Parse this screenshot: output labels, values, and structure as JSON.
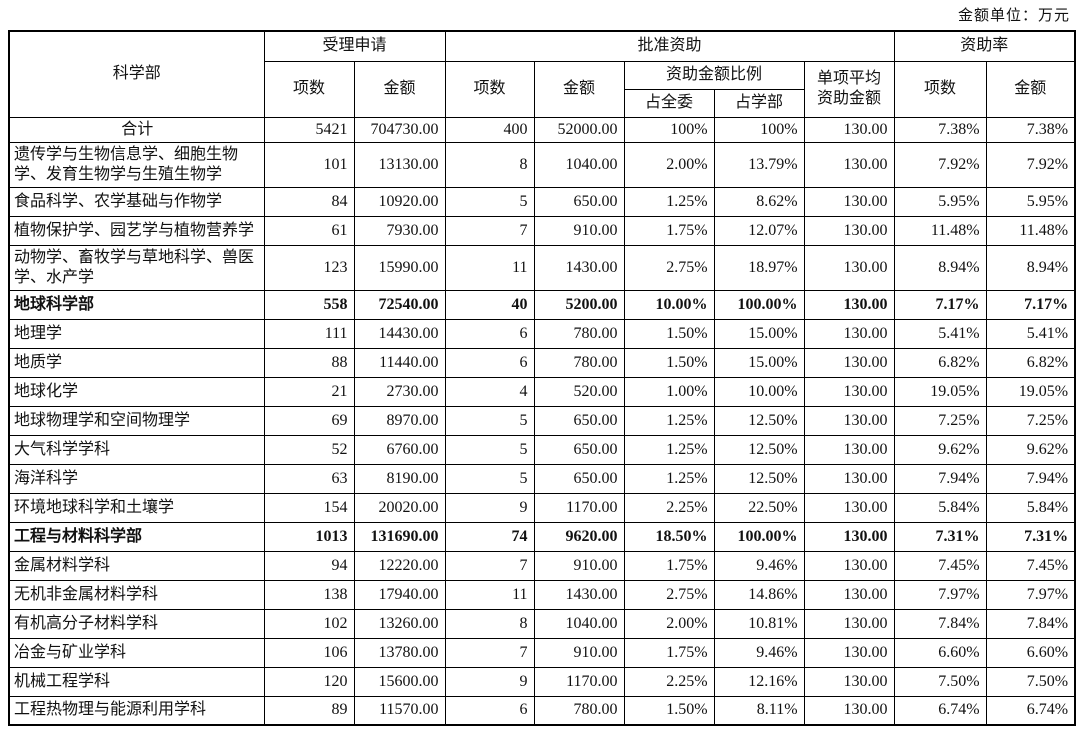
{
  "meta": {
    "unit_label": "金额单位：万元"
  },
  "table": {
    "headers": {
      "dept": "科学部",
      "group_accepted": "受理申请",
      "group_approved": "批准资助",
      "group_rate": "资助率",
      "count": "项数",
      "amount": "金额",
      "ratio_group": "资助金额比例",
      "ratio_committee": "占全委",
      "ratio_dept": "占学部",
      "avg_single": "单项平均 资助金额"
    },
    "rows": [
      {
        "name": "合计",
        "type": "total",
        "values": [
          "5421",
          "704730.00",
          "400",
          "52000.00",
          "100%",
          "100%",
          "130.00",
          "7.38%",
          "7.38%"
        ]
      },
      {
        "name": "遗传学与生物信息学、细胞生物学、发育生物学与生殖生物学",
        "type": "item",
        "values": [
          "101",
          "13130.00",
          "8",
          "1040.00",
          "2.00%",
          "13.79%",
          "130.00",
          "7.92%",
          "7.92%"
        ]
      },
      {
        "name": "食品科学、农学基础与作物学",
        "type": "item",
        "values": [
          "84",
          "10920.00",
          "5",
          "650.00",
          "1.25%",
          "8.62%",
          "130.00",
          "5.95%",
          "5.95%"
        ]
      },
      {
        "name": "植物保护学、园艺学与植物营养学",
        "type": "item",
        "values": [
          "61",
          "7930.00",
          "7",
          "910.00",
          "1.75%",
          "12.07%",
          "130.00",
          "11.48%",
          "11.48%"
        ]
      },
      {
        "name": "动物学、畜牧学与草地科学、兽医学、水产学",
        "type": "item",
        "values": [
          "123",
          "15990.00",
          "11",
          "1430.00",
          "2.75%",
          "18.97%",
          "130.00",
          "8.94%",
          "8.94%"
        ]
      },
      {
        "name": "地球科学部",
        "type": "section",
        "values": [
          "558",
          "72540.00",
          "40",
          "5200.00",
          "10.00%",
          "100.00%",
          "130.00",
          "7.17%",
          "7.17%"
        ]
      },
      {
        "name": "地理学",
        "type": "item",
        "values": [
          "111",
          "14430.00",
          "6",
          "780.00",
          "1.50%",
          "15.00%",
          "130.00",
          "5.41%",
          "5.41%"
        ]
      },
      {
        "name": "地质学",
        "type": "item",
        "values": [
          "88",
          "11440.00",
          "6",
          "780.00",
          "1.50%",
          "15.00%",
          "130.00",
          "6.82%",
          "6.82%"
        ]
      },
      {
        "name": "地球化学",
        "type": "item",
        "values": [
          "21",
          "2730.00",
          "4",
          "520.00",
          "1.00%",
          "10.00%",
          "130.00",
          "19.05%",
          "19.05%"
        ]
      },
      {
        "name": "地球物理学和空间物理学",
        "type": "item",
        "values": [
          "69",
          "8970.00",
          "5",
          "650.00",
          "1.25%",
          "12.50%",
          "130.00",
          "7.25%",
          "7.25%"
        ]
      },
      {
        "name": "大气科学学科",
        "type": "item",
        "values": [
          "52",
          "6760.00",
          "5",
          "650.00",
          "1.25%",
          "12.50%",
          "130.00",
          "9.62%",
          "9.62%"
        ]
      },
      {
        "name": "海洋科学",
        "type": "item",
        "values": [
          "63",
          "8190.00",
          "5",
          "650.00",
          "1.25%",
          "12.50%",
          "130.00",
          "7.94%",
          "7.94%"
        ]
      },
      {
        "name": "环境地球科学和土壤学",
        "type": "item",
        "values": [
          "154",
          "20020.00",
          "9",
          "1170.00",
          "2.25%",
          "22.50%",
          "130.00",
          "5.84%",
          "5.84%"
        ]
      },
      {
        "name": "工程与材料科学部",
        "type": "section",
        "values": [
          "1013",
          "131690.00",
          "74",
          "9620.00",
          "18.50%",
          "100.00%",
          "130.00",
          "7.31%",
          "7.31%"
        ]
      },
      {
        "name": "金属材料学科",
        "type": "item",
        "values": [
          "94",
          "12220.00",
          "7",
          "910.00",
          "1.75%",
          "9.46%",
          "130.00",
          "7.45%",
          "7.45%"
        ]
      },
      {
        "name": "无机非金属材料学科",
        "type": "item",
        "values": [
          "138",
          "17940.00",
          "11",
          "1430.00",
          "2.75%",
          "14.86%",
          "130.00",
          "7.97%",
          "7.97%"
        ]
      },
      {
        "name": "有机高分子材料学科",
        "type": "item",
        "values": [
          "102",
          "13260.00",
          "8",
          "1040.00",
          "2.00%",
          "10.81%",
          "130.00",
          "7.84%",
          "7.84%"
        ]
      },
      {
        "name": "冶金与矿业学科",
        "type": "item",
        "values": [
          "106",
          "13780.00",
          "7",
          "910.00",
          "1.75%",
          "9.46%",
          "130.00",
          "6.60%",
          "6.60%"
        ]
      },
      {
        "name": "机械工程学科",
        "type": "item",
        "values": [
          "120",
          "15600.00",
          "9",
          "1170.00",
          "2.25%",
          "12.16%",
          "130.00",
          "7.50%",
          "7.50%"
        ]
      },
      {
        "name": "工程热物理与能源利用学科",
        "type": "item",
        "values": [
          "89",
          "11570.00",
          "6",
          "780.00",
          "1.50%",
          "8.11%",
          "130.00",
          "6.74%",
          "6.74%"
        ]
      }
    ]
  }
}
